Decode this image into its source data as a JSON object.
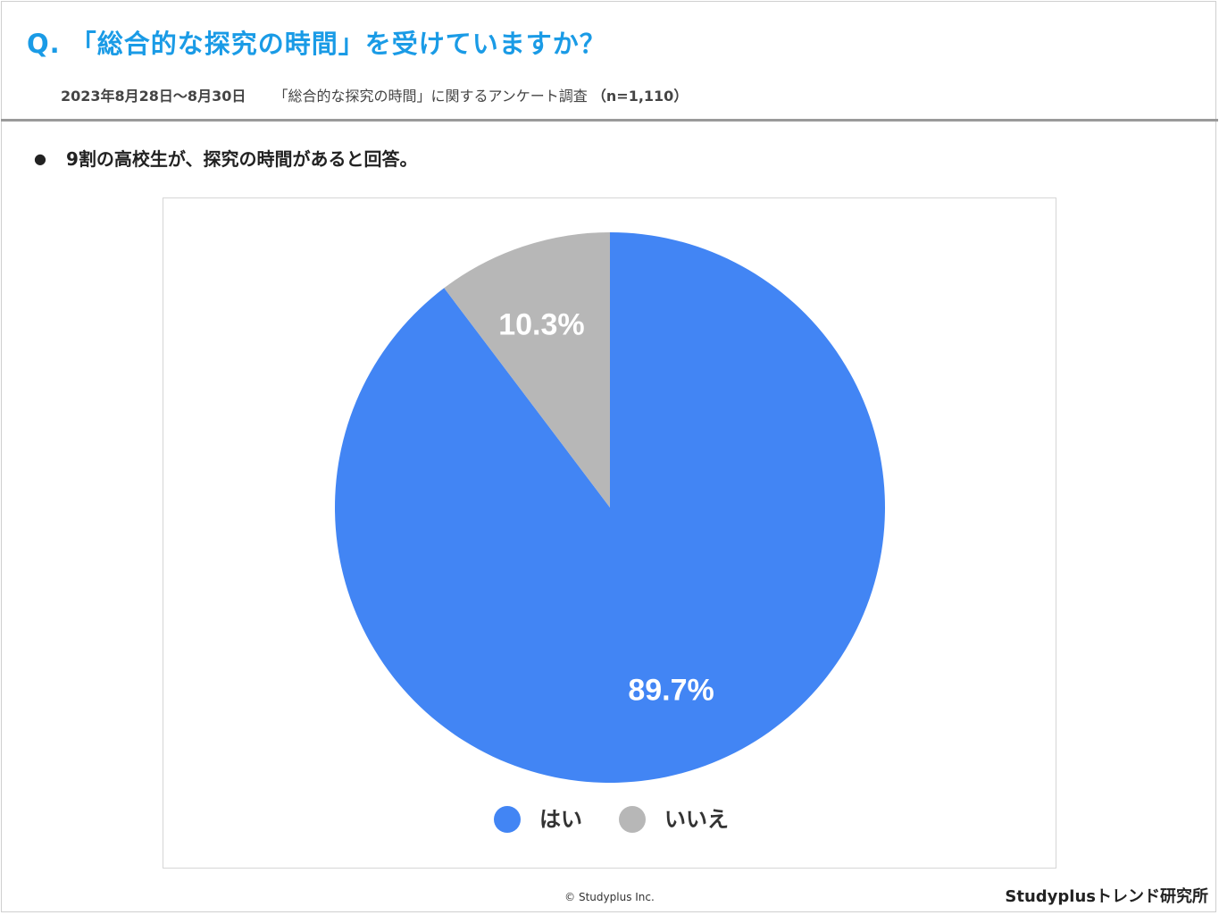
{
  "header": {
    "title": "Q. 「総合的な探究の時間」を受けていますか？",
    "date_range": "2023年8月28日〜8月30日",
    "survey_name": "「総合的な探究の時間」に関するアンケート調査",
    "sample_size": "（n=1,110）"
  },
  "summary": {
    "bullet_glyph": "●",
    "text": "9割の高校生が、探究の時間があると回答。"
  },
  "chart_data": {
    "type": "pie",
    "title": "",
    "start_angle_deg": 0,
    "direction": "clockwise",
    "series": [
      {
        "name": "はい",
        "value": 89.7,
        "label": "89.7%",
        "color": "#4285f4"
      },
      {
        "name": "いいえ",
        "value": 10.3,
        "label": "10.3%",
        "color": "#b7b7b7"
      }
    ],
    "legend": {
      "position": "bottom",
      "entries": [
        "はい",
        "いいえ"
      ]
    },
    "label_color": "#ffffff"
  },
  "footer": {
    "copyright": "© Studyplus Inc.",
    "brand": "Studyplusトレンド研究所"
  },
  "colors": {
    "title": "#1a9be6",
    "divider": "#9a9a9a"
  }
}
